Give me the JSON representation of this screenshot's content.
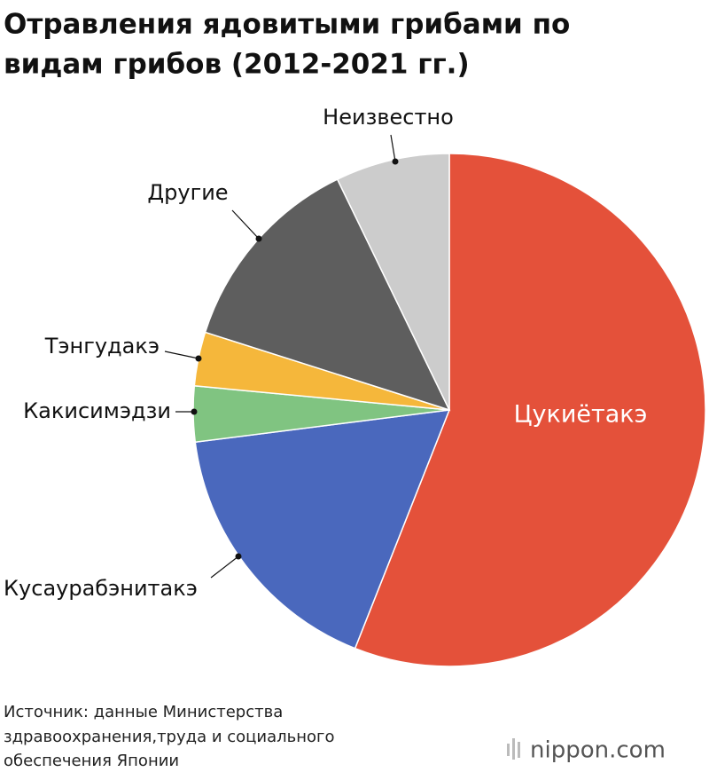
{
  "chart_data": {
    "type": "pie",
    "title": [
      "Отравления ядовитыми грибами по",
      "видам грибов (2012-2021 гг.)"
    ],
    "categories": [
      "Цукиётакэ",
      "Кусаурабэнитакэ",
      "Какисимэдзи",
      "Тэнгудакэ",
      "Другие",
      "Неизвестно"
    ],
    "values": [
      56.0,
      17.0,
      3.5,
      3.4,
      12.9,
      7.2
    ],
    "colors": [
      "#e4513a",
      "#4a68bd",
      "#80c481",
      "#f5b73b",
      "#5e5e5e",
      "#cccccc"
    ],
    "source": [
      "Источник: данные Министерства",
      "здравоохранения,труда и социального",
      "обеспечения Японии"
    ],
    "logo": "nippon.com"
  }
}
